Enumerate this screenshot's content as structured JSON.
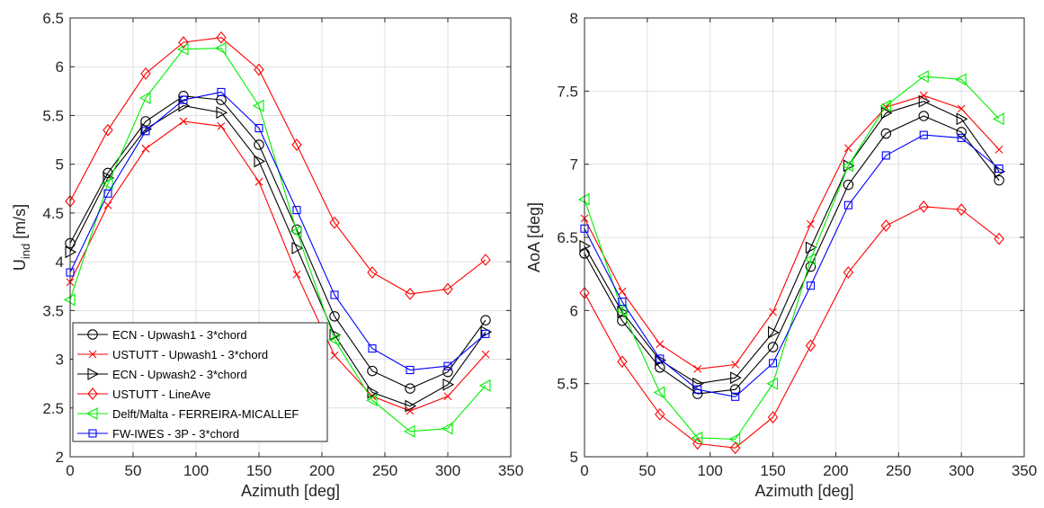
{
  "chart_data": [
    {
      "type": "line",
      "xlabel": "Azimuth [deg]",
      "ylabel": "U",
      "ylabel_sub": "ind",
      "ylabel_unit": " [m/s]",
      "xlim": [
        0,
        350
      ],
      "ylim": [
        2,
        6.5
      ],
      "xticks": [
        0,
        50,
        100,
        150,
        200,
        250,
        300,
        350
      ],
      "yticks": [
        2,
        2.5,
        3,
        3.5,
        4,
        4.5,
        5,
        5.5,
        6,
        6.5
      ],
      "grid": true,
      "legend": "bottom-left",
      "x": [
        0,
        30,
        60,
        90,
        120,
        150,
        180,
        210,
        240,
        270,
        300,
        330
      ],
      "series": [
        {
          "name": "ECN - Upwash1 - 3*chord",
          "color": "#000000",
          "marker": "circle",
          "values": [
            4.19,
            4.91,
            5.44,
            5.7,
            5.66,
            5.2,
            4.33,
            3.44,
            2.88,
            2.7,
            2.87,
            3.4
          ]
        },
        {
          "name": "USTUTT - Upwash1 - 3*chord",
          "color": "#ff0000",
          "marker": "x",
          "values": [
            3.79,
            4.58,
            5.16,
            5.44,
            5.39,
            4.82,
            3.87,
            3.04,
            2.62,
            2.47,
            2.62,
            3.05
          ]
        },
        {
          "name": "ECN - Upwash2 - 3*chord",
          "color": "#000000",
          "marker": "triangle-right",
          "values": [
            4.1,
            4.86,
            5.36,
            5.6,
            5.53,
            5.03,
            4.14,
            3.25,
            2.66,
            2.52,
            2.74,
            3.28
          ]
        },
        {
          "name": "USTUTT - LineAve",
          "color": "#ff0000",
          "marker": "diamond",
          "values": [
            4.62,
            5.35,
            5.93,
            6.25,
            6.3,
            5.97,
            5.2,
            4.4,
            3.89,
            3.67,
            3.72,
            4.02
          ]
        },
        {
          "name": "Delft/Malta - FERREIRA-MICALLEF",
          "color": "#00ee00",
          "marker": "triangle-left",
          "values": [
            3.61,
            4.8,
            5.68,
            6.18,
            6.19,
            5.6,
            4.31,
            3.2,
            2.58,
            2.26,
            2.29,
            2.73
          ]
        },
        {
          "name": "FW-IWES - 3P - 3*chord",
          "color": "#0000ff",
          "marker": "square",
          "values": [
            3.89,
            4.7,
            5.34,
            5.66,
            5.74,
            5.37,
            4.53,
            3.66,
            3.11,
            2.89,
            2.93,
            3.26
          ]
        }
      ]
    },
    {
      "type": "line",
      "xlabel": "Azimuth [deg]",
      "ylabel": "AoA [deg]",
      "xlim": [
        0,
        350
      ],
      "ylim": [
        5,
        8
      ],
      "xticks": [
        0,
        50,
        100,
        150,
        200,
        250,
        300,
        350
      ],
      "yticks": [
        5,
        5.5,
        6,
        6.5,
        7,
        7.5,
        8
      ],
      "grid": true,
      "x": [
        0,
        30,
        60,
        90,
        120,
        150,
        180,
        210,
        240,
        270,
        300,
        330
      ],
      "series": [
        {
          "name": "ECN - Upwash1 - 3*chord",
          "color": "#000000",
          "marker": "circle",
          "values": [
            6.39,
            5.93,
            5.61,
            5.43,
            5.46,
            5.75,
            6.3,
            6.86,
            7.21,
            7.33,
            7.22,
            6.89
          ]
        },
        {
          "name": "USTUTT - Upwash1 - 3*chord",
          "color": "#ff0000",
          "marker": "x",
          "values": [
            6.63,
            6.13,
            5.77,
            5.6,
            5.63,
            5.99,
            6.59,
            7.11,
            7.39,
            7.47,
            7.38,
            7.1
          ]
        },
        {
          "name": "ECN - Upwash2 - 3*chord",
          "color": "#000000",
          "marker": "triangle-right",
          "values": [
            6.44,
            5.99,
            5.66,
            5.5,
            5.54,
            5.85,
            6.43,
            6.99,
            7.35,
            7.43,
            7.31,
            6.95
          ]
        },
        {
          "name": "USTUTT - LineAve",
          "color": "#ff0000",
          "marker": "diamond",
          "values": [
            6.12,
            5.65,
            5.29,
            5.09,
            5.06,
            5.27,
            5.76,
            6.26,
            6.58,
            6.71,
            6.69,
            6.49
          ]
        },
        {
          "name": "Delft/Malta - FERREIRA-MICALLEF",
          "color": "#00ee00",
          "marker": "triangle-left",
          "values": [
            6.76,
            6.0,
            5.44,
            5.13,
            5.12,
            5.5,
            6.35,
            6.99,
            7.4,
            7.6,
            7.58,
            7.31
          ]
        },
        {
          "name": "FW-IWES - 3P - 3*chord",
          "color": "#0000ff",
          "marker": "square",
          "values": [
            6.56,
            6.06,
            5.67,
            5.46,
            5.41,
            5.64,
            6.17,
            6.72,
            7.06,
            7.2,
            7.18,
            6.97
          ]
        }
      ]
    }
  ]
}
